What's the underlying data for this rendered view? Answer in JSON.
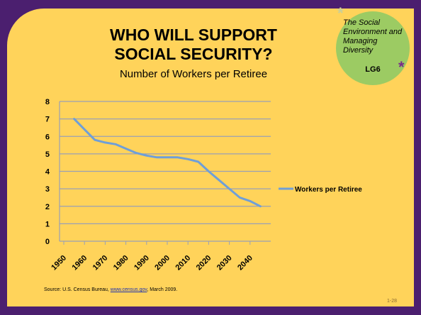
{
  "title_line1": "WHO WILL SUPPORT",
  "title_line2": "SOCIAL SECURITY?",
  "subtitle": "Number of Workers per Retiree",
  "badge": {
    "text": "The Social Environment and Managing Diversity",
    "code": "LG6",
    "star": "*"
  },
  "source": {
    "prefix": "Source: U.S. Census Bureau, ",
    "link": "www.census.gov",
    "suffix": ", March 2009."
  },
  "page_number": "1-28",
  "colors": {
    "background": "#4b1f6f",
    "panel": "#ffd35a",
    "badge": "#9ccb63",
    "line": "#6f9fd8",
    "grid": "#9aa0b5"
  },
  "chart_data": {
    "type": "line",
    "title": "",
    "xlabel": "",
    "ylabel": "",
    "ylim": [
      0,
      8
    ],
    "y_ticks": [
      "0",
      "1",
      "2",
      "3",
      "4",
      "5",
      "6",
      "7",
      "8"
    ],
    "categories": [
      "1950",
      "1960",
      "1970",
      "1980",
      "1990",
      "2000",
      "2010",
      "2020",
      "2030",
      "2040"
    ],
    "grid": true,
    "legend": "right",
    "series": [
      {
        "name": "Workers per Retiree",
        "x": [
          1955,
          1960,
          1965,
          1970,
          1975,
          1980,
          1985,
          1990,
          1995,
          2000,
          2005,
          2010,
          2015,
          2020,
          2025,
          2030,
          2035,
          2040,
          2045
        ],
        "values": [
          7.0,
          6.4,
          5.8,
          5.65,
          5.55,
          5.3,
          5.05,
          4.9,
          4.8,
          4.8,
          4.8,
          4.7,
          4.55,
          4.0,
          3.5,
          3.0,
          2.5,
          2.3,
          2.0
        ]
      }
    ]
  }
}
